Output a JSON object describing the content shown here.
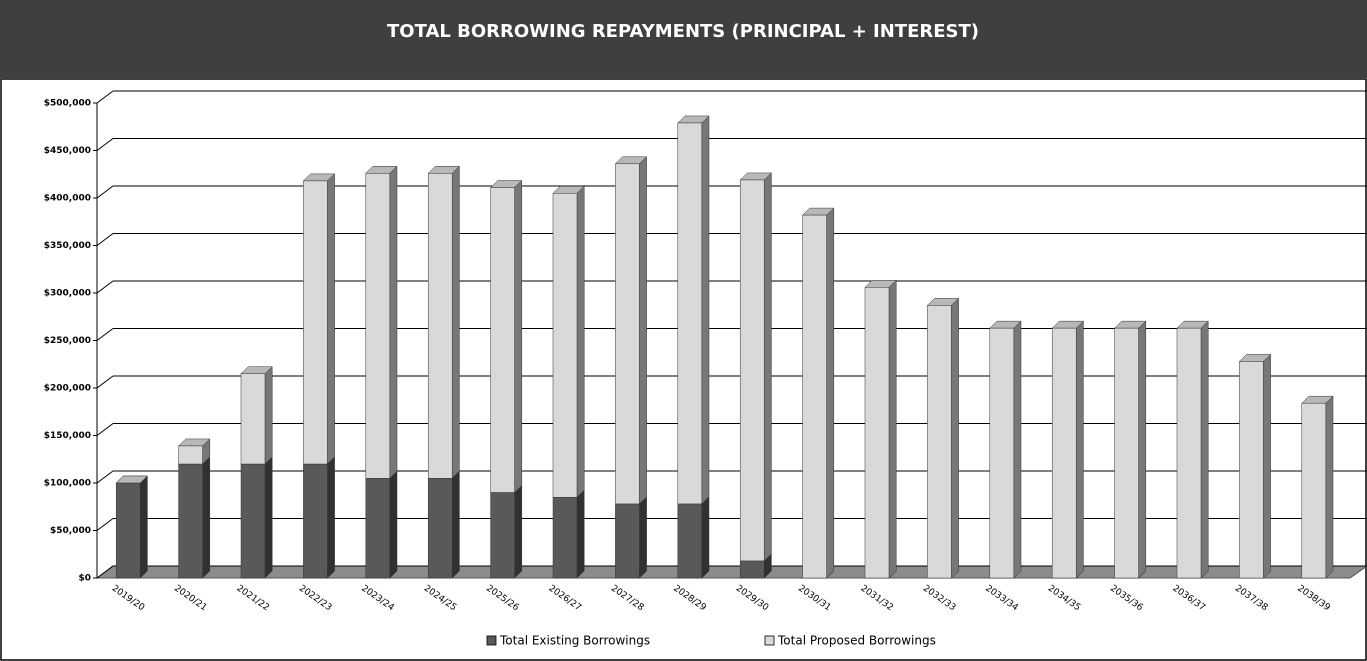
{
  "chart_data": {
    "type": "bar",
    "stacked": true,
    "title": "TOTAL BORROWING REPAYMENTS (PRINCIPAL + INTEREST)",
    "categories": [
      "2019/20",
      "2020/21",
      "2021/22",
      "2022/23",
      "2023/24",
      "2024/25",
      "2025/26",
      "2026/27",
      "2027/28",
      "2028/29",
      "2029/30",
      "2030/31",
      "2031/32",
      "2032/33",
      "2033/34",
      "2034/35",
      "2035/36",
      "2036/37",
      "2037/38",
      "2038/39"
    ],
    "series": [
      {
        "name": "Total Existing Borrowings",
        "color": "#595959",
        "values": [
          100000,
          120000,
          120000,
          120000,
          105000,
          105000,
          90000,
          85000,
          78000,
          78000,
          18000,
          0,
          0,
          0,
          0,
          0,
          0,
          0,
          0,
          0
        ]
      },
      {
        "name": "Total Proposed Borrowings",
        "color": "#d9d9d9",
        "values": [
          0,
          19000,
          95000,
          298000,
          321000,
          321000,
          321000,
          320000,
          358000,
          401000,
          401000,
          382000,
          306000,
          287000,
          263000,
          263000,
          263000,
          263000,
          228000,
          184000
        ]
      }
    ],
    "ylim": [
      0,
      500000
    ],
    "yticks": [
      {
        "value": 0,
        "label": "$0"
      },
      {
        "value": 50000,
        "label": "$50,000"
      },
      {
        "value": 100000,
        "label": "$100,000"
      },
      {
        "value": 150000,
        "label": "$150,000"
      },
      {
        "value": 200000,
        "label": "$200,000"
      },
      {
        "value": 250000,
        "label": "$250,000"
      },
      {
        "value": 300000,
        "label": "$300,000"
      },
      {
        "value": 350000,
        "label": "$350,000"
      },
      {
        "value": 400000,
        "label": "$400,000"
      },
      {
        "value": 450000,
        "label": "$450,000"
      },
      {
        "value": 500000,
        "label": "$500,000"
      }
    ],
    "grid": true,
    "legend": "bottom"
  }
}
